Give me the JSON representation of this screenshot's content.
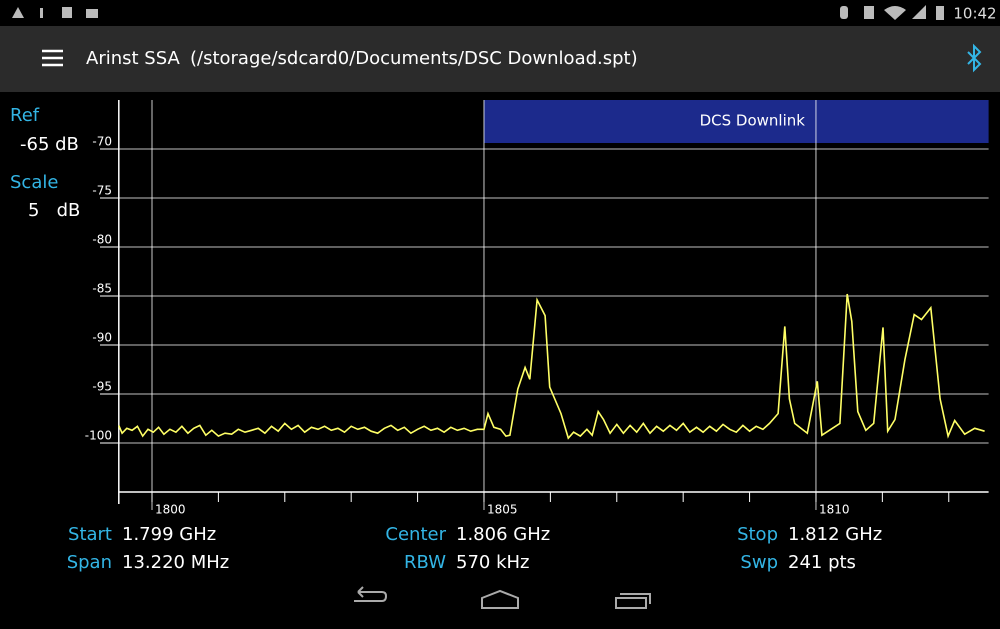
{
  "status_bar": {
    "time": "10:42"
  },
  "app_bar": {
    "title": "Arinst SSA",
    "file": "(/storage/sdcard0/Documents/DSC Download.spt)"
  },
  "settings": {
    "ref_label": "Ref",
    "ref_value": "-65 dB",
    "scale_label": "Scale",
    "scale_value": "5   dB"
  },
  "footer": [
    {
      "label": "Start",
      "value": "1.799 GHz"
    },
    {
      "label": "Center",
      "value": "1.806 GHz"
    },
    {
      "label": "Stop",
      "value": "1.812 GHz"
    },
    {
      "label": "Span",
      "value": "13.220 MHz"
    },
    {
      "label": "RBW",
      "value": "570 kHz"
    },
    {
      "label": "Swp",
      "value": "241 pts"
    }
  ],
  "chart_data": {
    "type": "line",
    "color": "#ffff66",
    "xlim": [
      1799.5,
      1812.6
    ],
    "xticks": [
      1800,
      1805,
      1810
    ],
    "xminorticks": [
      1800,
      1801,
      1802,
      1803,
      1804,
      1805,
      1806,
      1807,
      1808,
      1809,
      1810,
      1811,
      1812
    ],
    "ylim": [
      -105,
      -65
    ],
    "yticks": [
      -70,
      -75,
      -80,
      -85,
      -90,
      -95,
      -100
    ],
    "grid": true,
    "band": {
      "label": "DCS Downlink",
      "start": 1805
    },
    "x": [
      1799.5,
      1799.55,
      1799.62,
      1799.7,
      1799.78,
      1799.86,
      1799.94,
      1800.02,
      1800.1,
      1800.18,
      1800.27,
      1800.36,
      1800.45,
      1800.54,
      1800.63,
      1800.72,
      1800.81,
      1800.9,
      1801.0,
      1801.1,
      1801.2,
      1801.3,
      1801.4,
      1801.5,
      1801.6,
      1801.7,
      1801.8,
      1801.9,
      1802.0,
      1802.1,
      1802.2,
      1802.3,
      1802.4,
      1802.5,
      1802.6,
      1802.7,
      1802.8,
      1802.9,
      1803.0,
      1803.1,
      1803.2,
      1803.3,
      1803.4,
      1803.5,
      1803.6,
      1803.7,
      1803.8,
      1803.9,
      1804.0,
      1804.1,
      1804.2,
      1804.3,
      1804.4,
      1804.5,
      1804.6,
      1804.7,
      1804.8,
      1804.9,
      1805.0,
      1805.06,
      1805.15,
      1805.25,
      1805.33,
      1805.39,
      1805.51,
      1805.62,
      1805.69,
      1805.8,
      1805.92,
      1805.99,
      1806.16,
      1806.27,
      1806.35,
      1806.45,
      1806.55,
      1806.63,
      1806.72,
      1806.8,
      1806.9,
      1807.0,
      1807.1,
      1807.2,
      1807.3,
      1807.4,
      1807.5,
      1807.6,
      1807.7,
      1807.8,
      1807.9,
      1808.0,
      1808.1,
      1808.2,
      1808.3,
      1808.4,
      1808.5,
      1808.6,
      1808.7,
      1808.8,
      1808.9,
      1809.0,
      1809.1,
      1809.2,
      1809.3,
      1809.43,
      1809.53,
      1809.6,
      1809.68,
      1809.87,
      1810.02,
      1810.09,
      1810.36,
      1810.47,
      1810.54,
      1810.63,
      1810.75,
      1810.87,
      1811.01,
      1811.08,
      1811.19,
      1811.34,
      1811.48,
      1811.59,
      1811.73,
      1811.87,
      1811.99,
      1812.09,
      1812.24,
      1812.39,
      1812.54
    ],
    "values": [
      -98.2,
      -99.0,
      -98.5,
      -98.7,
      -98.3,
      -99.3,
      -98.6,
      -98.9,
      -98.4,
      -99.1,
      -98.6,
      -98.9,
      -98.3,
      -99.0,
      -98.5,
      -98.2,
      -99.2,
      -98.7,
      -99.3,
      -99.0,
      -99.1,
      -98.6,
      -98.9,
      -98.7,
      -98.5,
      -99.0,
      -98.3,
      -98.8,
      -98.0,
      -98.6,
      -98.2,
      -98.9,
      -98.4,
      -98.6,
      -98.3,
      -98.7,
      -98.5,
      -98.9,
      -98.3,
      -98.6,
      -98.4,
      -98.8,
      -99.0,
      -98.5,
      -98.2,
      -98.7,
      -98.4,
      -99.0,
      -98.6,
      -98.3,
      -98.7,
      -98.5,
      -98.9,
      -98.4,
      -98.7,
      -98.5,
      -98.8,
      -98.6,
      -98.6,
      -97.0,
      -98.4,
      -98.6,
      -99.3,
      -99.2,
      -94.5,
      -92.3,
      -93.5,
      -85.4,
      -87.0,
      -94.3,
      -97.0,
      -99.5,
      -98.9,
      -99.3,
      -98.6,
      -99.2,
      -96.8,
      -97.6,
      -99.0,
      -98.1,
      -99.0,
      -98.2,
      -98.9,
      -98.0,
      -99.0,
      -98.3,
      -98.8,
      -98.2,
      -98.7,
      -98.0,
      -98.9,
      -98.4,
      -98.9,
      -98.3,
      -98.8,
      -98.1,
      -98.6,
      -98.9,
      -98.2,
      -98.8,
      -98.3,
      -98.6,
      -98.0,
      -97.0,
      -88.1,
      -95.5,
      -98.0,
      -99.0,
      -93.7,
      -99.2,
      -98.0,
      -84.8,
      -87.6,
      -96.8,
      -98.7,
      -98.0,
      -88.2,
      -98.8,
      -97.6,
      -91.5,
      -86.9,
      -87.4,
      -86.2,
      -95.5,
      -99.3,
      -97.7,
      -99.1,
      -98.5,
      -98.8
    ]
  }
}
